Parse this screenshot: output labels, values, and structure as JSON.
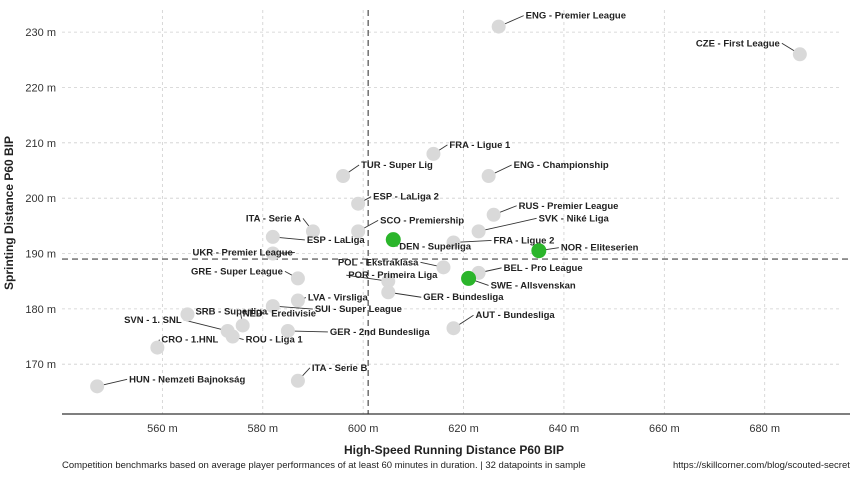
{
  "chart_data": {
    "type": "scatter",
    "xlabel": "High-Speed Running Distance P60 BIP",
    "ylabel": "Sprinting Distance P60 BIP",
    "xlim": [
      540,
      695
    ],
    "ylim": [
      161,
      234
    ],
    "x_ticks": [
      560,
      580,
      600,
      620,
      640,
      660,
      680
    ],
    "y_ticks": [
      170,
      180,
      190,
      200,
      210,
      220,
      230
    ],
    "x_tick_labels": [
      "560 m",
      "580 m",
      "600 m",
      "620 m",
      "640 m",
      "660 m",
      "680 m"
    ],
    "y_tick_labels": [
      "170 m",
      "180 m",
      "190 m",
      "200 m",
      "210 m",
      "220 m",
      "230 m"
    ],
    "grid": true,
    "reference_lines": {
      "x": 601,
      "y": 189
    },
    "highlight_color": "#2bb52b",
    "default_color": "#d9d9d9",
    "points": [
      {
        "label": "ENG - Premier League",
        "x": 627,
        "y": 231,
        "highlight": false
      },
      {
        "label": "CZE - First League",
        "x": 687,
        "y": 226,
        "highlight": false
      },
      {
        "label": "FRA - Ligue 1",
        "x": 614,
        "y": 208,
        "highlight": false
      },
      {
        "label": "ENG - Championship",
        "x": 625,
        "y": 204,
        "highlight": false
      },
      {
        "label": "TUR - Super Lig",
        "x": 596,
        "y": 204,
        "highlight": false
      },
      {
        "label": "ESP - LaLiga 2",
        "x": 599,
        "y": 199,
        "highlight": false
      },
      {
        "label": "RUS - Premier League",
        "x": 626,
        "y": 197,
        "highlight": false
      },
      {
        "label": "ITA - Serie A",
        "x": 590,
        "y": 194,
        "highlight": false
      },
      {
        "label": "SCO - Premiership",
        "x": 599,
        "y": 194,
        "highlight": false
      },
      {
        "label": "SVK - Niké Liga",
        "x": 623,
        "y": 194,
        "highlight": false
      },
      {
        "label": "ESP - LaLiga",
        "x": 582,
        "y": 193,
        "highlight": false
      },
      {
        "label": "DEN - Superliga",
        "x": 606,
        "y": 192.5,
        "highlight": true
      },
      {
        "label": "FRA - Ligue 2",
        "x": 618,
        "y": 192,
        "highlight": false
      },
      {
        "label": "NOR - Eliteserien",
        "x": 635,
        "y": 190.5,
        "highlight": true
      },
      {
        "label": "UKR - Premier League",
        "x": 582,
        "y": 190,
        "highlight": false
      },
      {
        "label": "POL - Ekstraklasa",
        "x": 616,
        "y": 187.5,
        "highlight": false
      },
      {
        "label": "BEL - Pro League",
        "x": 623,
        "y": 186.5,
        "highlight": false
      },
      {
        "label": "GRE - Super League",
        "x": 587,
        "y": 185.5,
        "highlight": false
      },
      {
        "label": "SWE - Allsvenskan",
        "x": 621,
        "y": 185.5,
        "highlight": true
      },
      {
        "label": "POR - Primeira Liga",
        "x": 605,
        "y": 185,
        "highlight": false
      },
      {
        "label": "GER - Bundesliga",
        "x": 605,
        "y": 183,
        "highlight": false
      },
      {
        "label": "LVA - Virsliga",
        "x": 587,
        "y": 181.5,
        "highlight": false
      },
      {
        "label": "SRB - Superliga",
        "x": 565,
        "y": 179,
        "highlight": false
      },
      {
        "label": "SUI - Super League",
        "x": 582,
        "y": 180.5,
        "highlight": false
      },
      {
        "label": "NED - Eredivisie",
        "x": 576,
        "y": 177,
        "highlight": false
      },
      {
        "label": "AUT - Bundesliga",
        "x": 618,
        "y": 176.5,
        "highlight": false
      },
      {
        "label": "SVN - 1. SNL",
        "x": 573,
        "y": 176,
        "highlight": false
      },
      {
        "label": "GER - 2nd Bundesliga",
        "x": 585,
        "y": 176,
        "highlight": false
      },
      {
        "label": "ROU - Liga 1",
        "x": 574,
        "y": 175,
        "highlight": false
      },
      {
        "label": "CRO - 1.HNL",
        "x": 559,
        "y": 173,
        "highlight": false
      },
      {
        "label": "ITA - Serie B",
        "x": 587,
        "y": 167,
        "highlight": false
      },
      {
        "label": "HUN - Nemzeti Bajnokság",
        "x": 547,
        "y": 166,
        "highlight": false
      }
    ]
  },
  "footer": {
    "note": "Competition benchmarks based on average player performances of at least 60 minutes in duration. | 32 datapoints in sample",
    "source": "https://skillcorner.com/blog/scouted-secret"
  }
}
